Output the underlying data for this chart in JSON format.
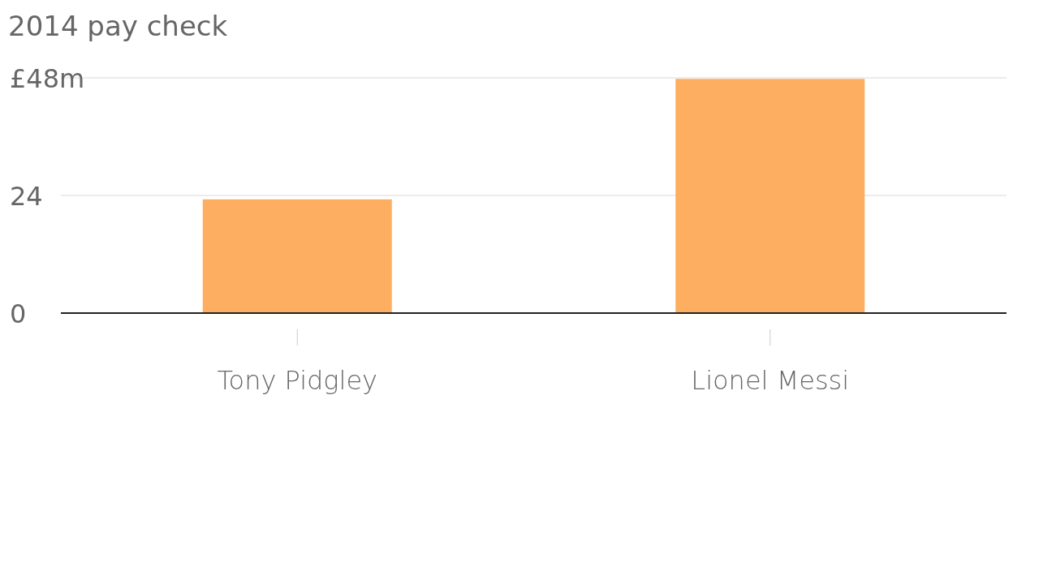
{
  "chart_data": {
    "type": "bar",
    "title": "2014 pay check",
    "categories": [
      "Tony Pidgley",
      "Lionel Messi"
    ],
    "values": [
      23.2,
      47.8
    ],
    "color": "#fdae61",
    "ylim": [
      0,
      48
    ],
    "yticks": [
      0,
      24,
      {
        "value": 48,
        "label": "£48m"
      }
    ],
    "grid": "y"
  }
}
